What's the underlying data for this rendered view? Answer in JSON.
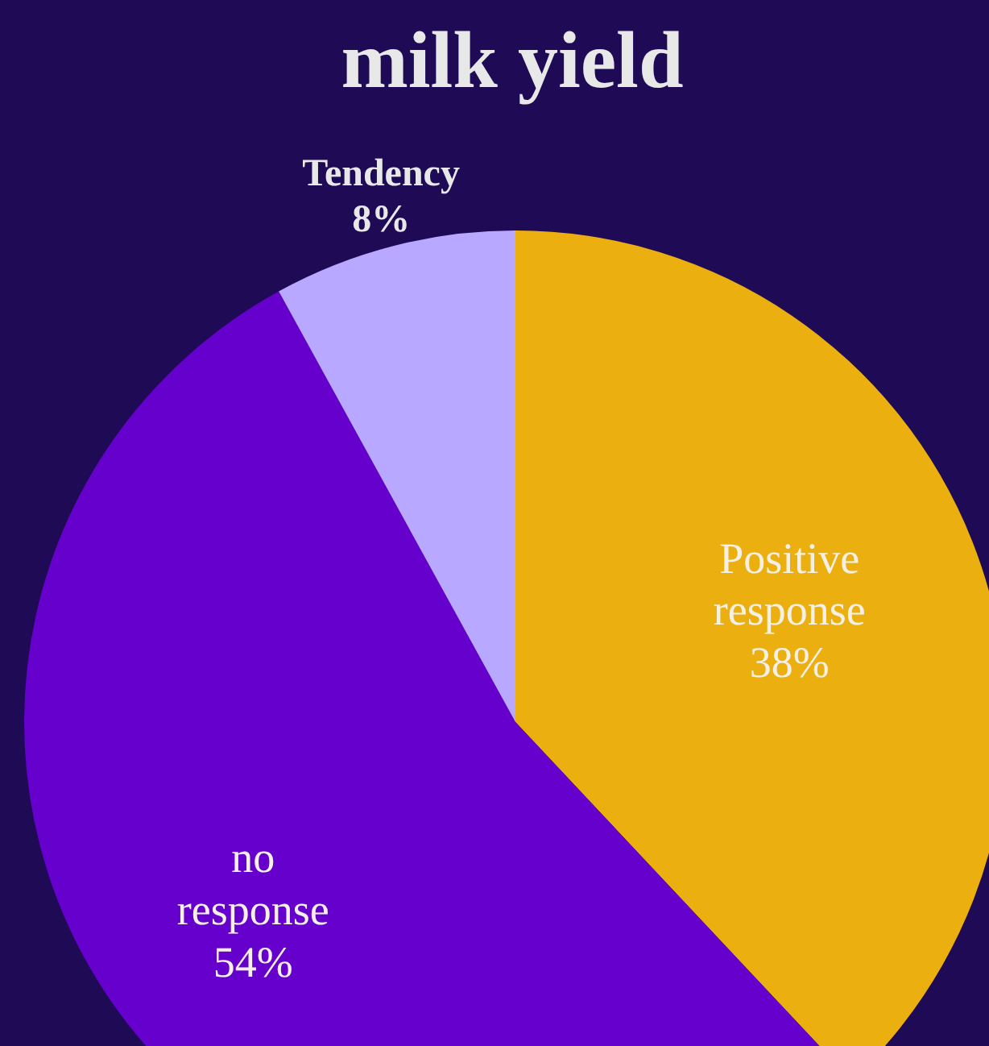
{
  "chart_data": {
    "type": "pie",
    "title": "milk yield",
    "categories": [
      "Positive response",
      "no response",
      "Tendency"
    ],
    "values": [
      38,
      54,
      8
    ],
    "colors": [
      "#ebb010",
      "#6600cc",
      "#b8a8ff"
    ],
    "value_labels": [
      "38%",
      "54%",
      "8%"
    ],
    "legend": false
  }
}
